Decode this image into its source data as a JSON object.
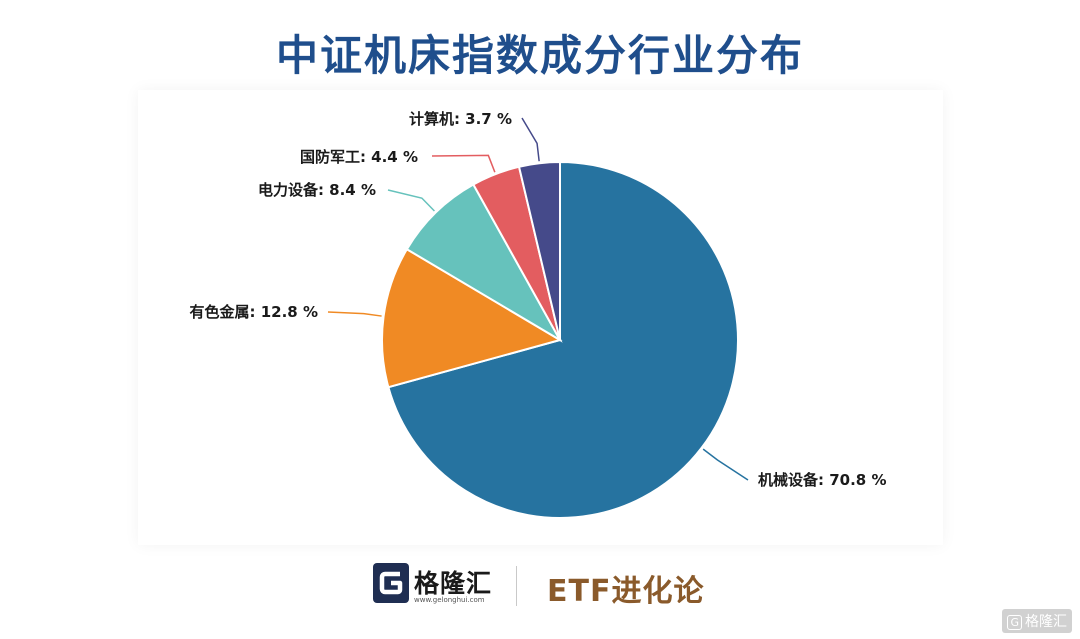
{
  "chart_data": {
    "type": "pie",
    "title": "中证机床指数成分行业分布",
    "unit": "%",
    "slices": [
      {
        "label": "机械设备",
        "value": 70.8,
        "color": "#2673a0"
      },
      {
        "label": "有色金属",
        "value": 12.8,
        "color": "#f08a24"
      },
      {
        "label": "电力设备",
        "value": 8.4,
        "color": "#66c2bc"
      },
      {
        "label": "国防军工",
        "value": 4.4,
        "color": "#e35d60"
      },
      {
        "label": "计算机",
        "value": 3.7,
        "color": "#454a8a"
      }
    ],
    "slice_labels": [
      "机械设备: 70.8 %",
      "有色金属: 12.8 %",
      "电力设备: 8.4 %",
      "国防军工: 4.4 %",
      "计算机: 3.7 %"
    ],
    "start_angle": "12 o'clock",
    "direction": "clockwise"
  },
  "footer": {
    "brand_name": "格隆汇",
    "brand_url": "www.gelonghui.com",
    "series_name": "ETF进化论"
  },
  "watermark": {
    "icon_text": "G",
    "text": "格隆汇"
  }
}
